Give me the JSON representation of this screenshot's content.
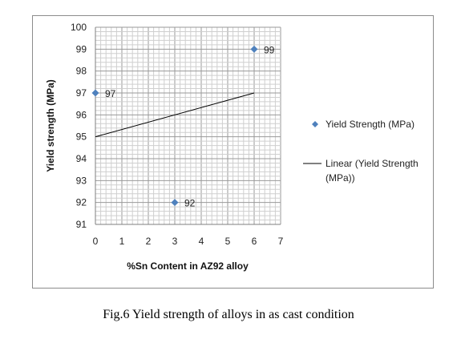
{
  "chart_data": {
    "type": "scatter",
    "xlabel": "%Sn Content in AZ92 alloy",
    "ylabel": "Yield strength (MPa)",
    "xlim": [
      0,
      7
    ],
    "ylim": [
      91,
      100
    ],
    "x_ticks": [
      "0",
      "1",
      "2",
      "3",
      "4",
      "5",
      "6",
      "7"
    ],
    "y_ticks": [
      "91",
      "92",
      "93",
      "94",
      "95",
      "96",
      "97",
      "98",
      "99",
      "100"
    ],
    "grid": true,
    "legend_position": "right",
    "series": [
      {
        "name": "Yield Strength (MPa)",
        "type": "scatter",
        "color": "#4f81bd",
        "marker": "diamond",
        "points": [
          {
            "x": 0,
            "y": 97,
            "label": "97"
          },
          {
            "x": 3,
            "y": 92,
            "label": "92"
          },
          {
            "x": 6,
            "y": 99,
            "label": "99"
          }
        ]
      },
      {
        "name": "Linear (Yield Strength (MPa))",
        "type": "line",
        "color": "#000000",
        "points": [
          {
            "x": 0,
            "y": 95
          },
          {
            "x": 6,
            "y": 97
          }
        ]
      }
    ]
  },
  "legend": {
    "scatter_label": "Yield Strength (MPa)",
    "trend_label_line1": "Linear (Yield Strength",
    "trend_label_line2": "(MPa))"
  },
  "caption": "Fig.6 Yield strength of alloys in as cast condition"
}
